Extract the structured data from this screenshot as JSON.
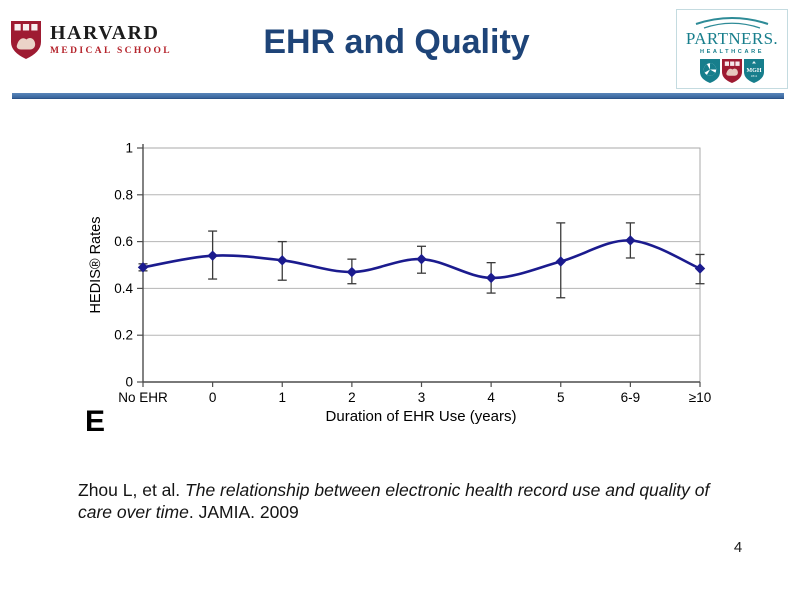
{
  "slide": {
    "title": "EHR and Quality",
    "title_color": "#1e4478",
    "page_number": "4"
  },
  "harvard_logo": {
    "line1": "HARVARD",
    "line2": "MEDICAL SCHOOL",
    "shield_color": "#9e1b32"
  },
  "partners_logo": {
    "wordmark": "PARTNERS.",
    "subtitle": "HealthCare",
    "mgh_label": "MGH",
    "mgh_year": "1811",
    "teal": "#177e8c",
    "harvard_red": "#9e1b32"
  },
  "citation": {
    "prefix": "Zhou L, et al. ",
    "italic_title": "The relationship between electronic health record use and quality of care over time",
    "suffix": ". JAMIA. 2009"
  },
  "chart_data": {
    "type": "line",
    "panel_label": "E",
    "title": "",
    "xlabel": "Duration of EHR Use (years)",
    "ylabel": "HEDIS® Rates",
    "categories": [
      "No EHR",
      "0",
      "1",
      "2",
      "3",
      "4",
      "5",
      "6-9",
      "≥10"
    ],
    "series": [
      {
        "name": "HEDIS rates",
        "values": [
          0.49,
          0.54,
          0.52,
          0.47,
          0.525,
          0.445,
          0.515,
          0.605,
          0.485
        ],
        "err_low": [
          0.475,
          0.44,
          0.435,
          0.42,
          0.465,
          0.38,
          0.36,
          0.53,
          0.42
        ],
        "err_high": [
          0.505,
          0.645,
          0.6,
          0.525,
          0.58,
          0.51,
          0.68,
          0.68,
          0.545
        ]
      }
    ],
    "ylim": [
      0,
      1
    ],
    "yticks": [
      0,
      0.2,
      0.4,
      0.6,
      0.8,
      1
    ],
    "grid": true,
    "legend": "none",
    "line_color": "#1b1b8e",
    "marker": "diamond",
    "error_bar_color": "#3a3a3a",
    "grid_color": "#b5b5b5",
    "axis_color": "#4d4d4d",
    "border_color": "#a9a9a9"
  }
}
